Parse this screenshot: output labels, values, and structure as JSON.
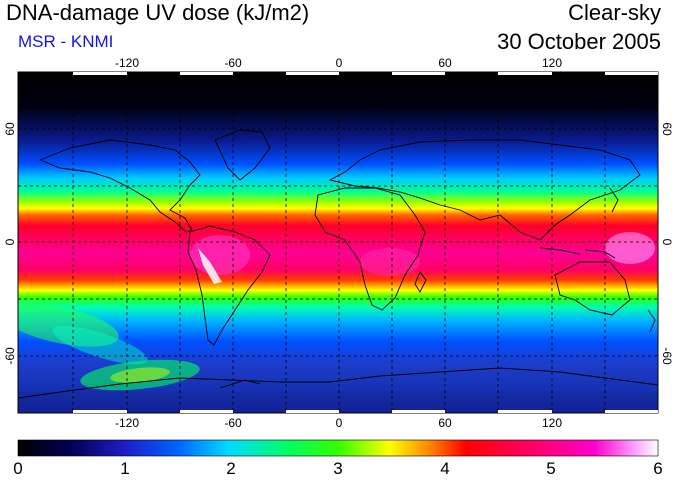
{
  "header": {
    "title": "DNA-damage UV dose (kJ/m2)",
    "source": "MSR - KNMI",
    "sky_condition": "Clear-sky",
    "date": "30 October 2005"
  },
  "map": {
    "projection": "plate carrée (lon/lat)",
    "lon_range": [
      -180,
      180
    ],
    "lat_range": [
      -90,
      90
    ],
    "lon_ticks": [
      "-120",
      "-60",
      "0",
      "60",
      "120"
    ],
    "lat_ticks_left": [
      "60",
      "0",
      "-60"
    ],
    "lat_ticks_right": [
      "60",
      "0",
      "-60"
    ],
    "grid": "dashed every 30°",
    "coastlines": true
  },
  "colorbar": {
    "min": 0,
    "max": 6,
    "labels": [
      "0",
      "1",
      "2",
      "3",
      "4",
      "5",
      "6"
    ],
    "colors": [
      "#000000",
      "#1a1a8c",
      "#0050ff",
      "#00c8ff",
      "#00ff96",
      "#32ff00",
      "#c8ff00",
      "#ffff00",
      "#ff8c00",
      "#ff0000",
      "#ff0064",
      "#ff00c8",
      "#ff96ff",
      "#ffffff"
    ]
  }
}
